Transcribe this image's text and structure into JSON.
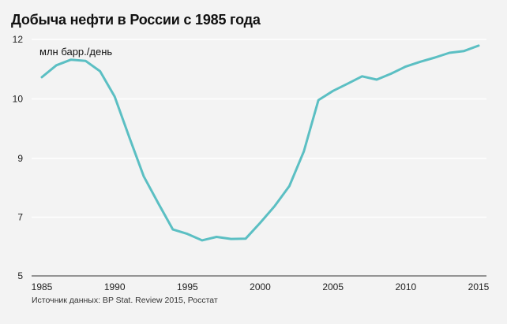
{
  "header": {
    "title": "Добыча нефти в России с 1985 года"
  },
  "footer": {
    "source": "Источник данных: BP Stat. Review 2015, Росстат"
  },
  "colors": {
    "line": "#5bbfc3",
    "grid": "#ffffff",
    "background": "#f3f3f3",
    "axis": "#333333"
  },
  "chart_data": {
    "type": "line",
    "title": "Добыча нефти в России с 1985 года",
    "ylabel": "млн барр./день",
    "xlabel": "",
    "grid": true,
    "xlim": [
      1985,
      2015
    ],
    "ylim": [
      5,
      12
    ],
    "x_ticks": [
      1985,
      1990,
      1995,
      2000,
      2005,
      2010,
      2015
    ],
    "x_tick_labels": [
      "1985",
      "1990",
      "1995",
      "2000",
      "2005",
      "2010",
      "2015"
    ],
    "y_ticks": [
      5,
      7,
      9,
      10,
      12
    ],
    "y_tick_labels": [
      "5",
      "7",
      "9",
      "10",
      "12"
    ],
    "series": [
      {
        "x": [
          1985,
          1986,
          1987,
          1988,
          1989,
          1990,
          1991,
          1992,
          1993,
          1994,
          1995,
          1996,
          1997,
          1998,
          1999,
          2000,
          2001,
          2002,
          2003,
          2004,
          2005,
          2006,
          2007,
          2008,
          2009,
          2010,
          2011,
          2012,
          2013,
          2014,
          2015
        ],
        "values": [
          10.73,
          11.13,
          11.32,
          11.28,
          10.93,
          10.08,
          9.36,
          8.39,
          7.47,
          6.58,
          6.43,
          6.21,
          6.33,
          6.26,
          6.27,
          6.81,
          7.38,
          8.06,
          9.12,
          9.98,
          10.27,
          10.51,
          10.76,
          10.65,
          10.85,
          11.09,
          11.25,
          11.39,
          11.55,
          11.61,
          11.79
        ]
      }
    ]
  }
}
